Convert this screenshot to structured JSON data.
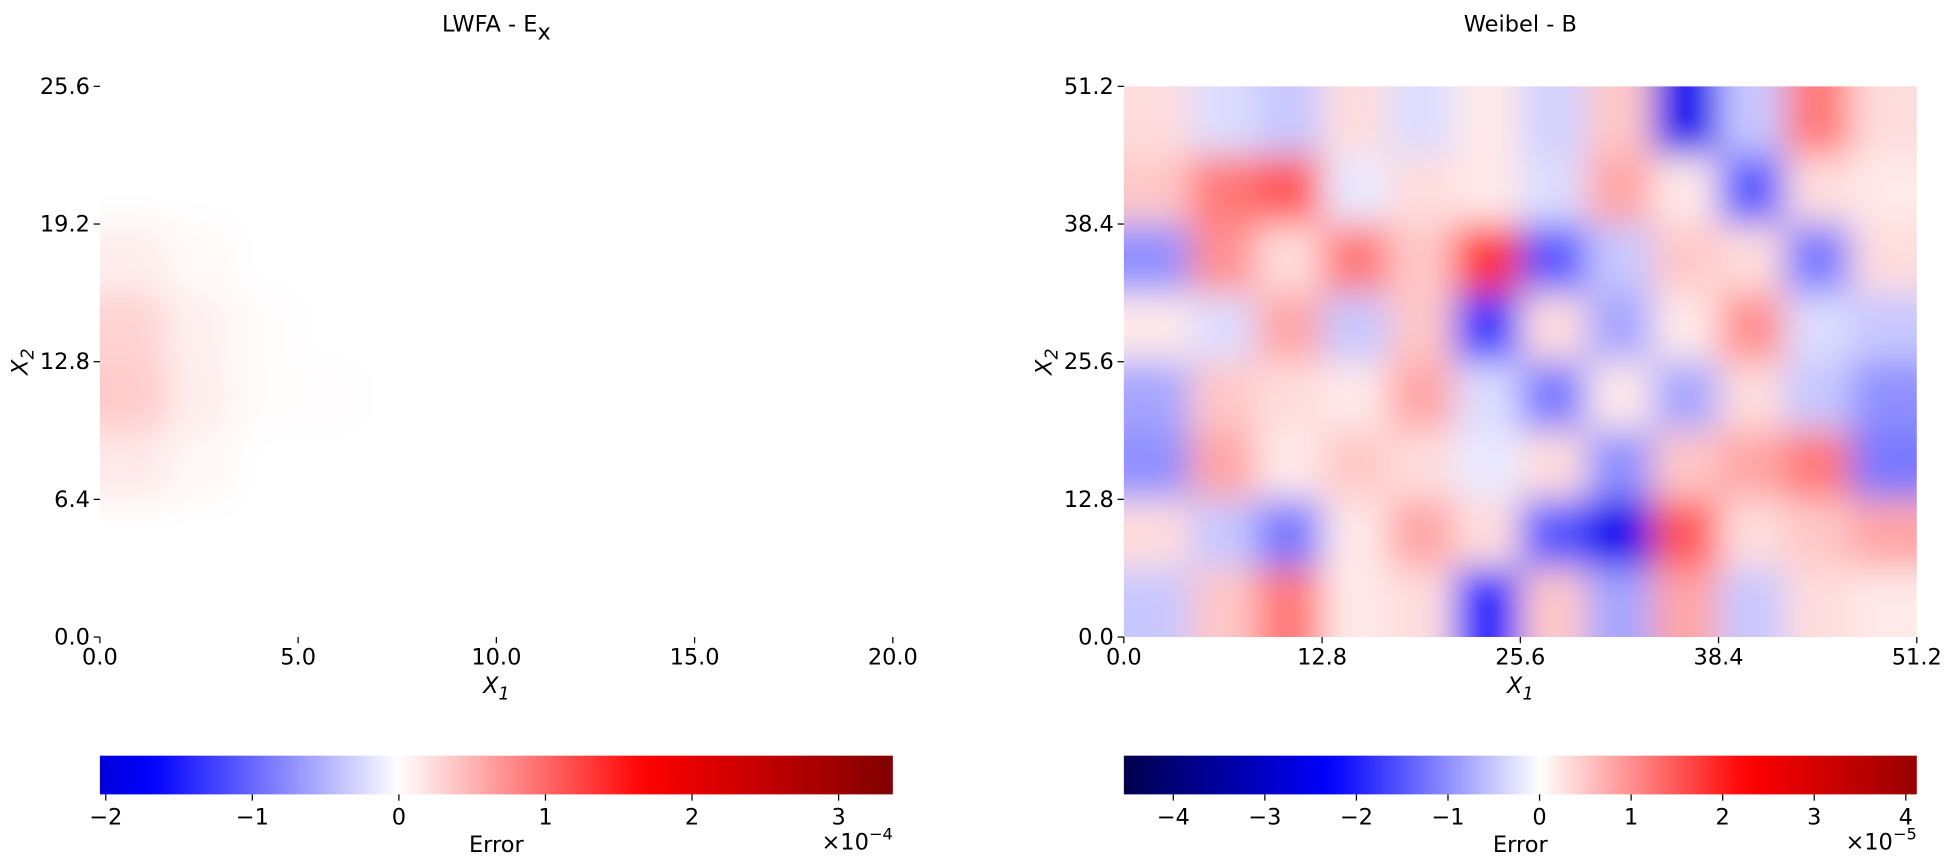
{
  "chart_data": [
    {
      "type": "heatmap",
      "title": "LWFA - E",
      "title_sub": "x",
      "xlabel": "X",
      "xlabel_sub": "1",
      "ylabel": "X",
      "ylabel_sub": "2",
      "xlim": [
        0,
        20
      ],
      "ylim": [
        0,
        25.6
      ],
      "xticks": [
        {
          "value": 0,
          "label": "0.0"
        },
        {
          "value": 5,
          "label": "5.0"
        },
        {
          "value": 10,
          "label": "10.0"
        },
        {
          "value": 15,
          "label": "15.0"
        },
        {
          "value": 20,
          "label": "20.0"
        }
      ],
      "yticks": [
        {
          "value": 0,
          "label": "0.0"
        },
        6.4,
        12.8,
        19.2,
        25.6
      ],
      "colormap": "seismic",
      "clim": [
        -2.04,
        3.37
      ],
      "z": [
        [
          0,
          0,
          0,
          0,
          0,
          0,
          0,
          0,
          0,
          0,
          0,
          0
        ],
        [
          0,
          0,
          0,
          0,
          0,
          0,
          0,
          0,
          0,
          0,
          0,
          0
        ],
        [
          0.12,
          0.04,
          0,
          0,
          0,
          0,
          0,
          0,
          0,
          0,
          0,
          0
        ],
        [
          0.3,
          0.1,
          0.02,
          0,
          0,
          0,
          0,
          0,
          0,
          0,
          0,
          0
        ],
        [
          0.35,
          0.12,
          0.02,
          0.01,
          0,
          0,
          0,
          0,
          0,
          0,
          0,
          0
        ],
        [
          0.15,
          0.05,
          0,
          0,
          0,
          0,
          0,
          0,
          0,
          0,
          0,
          0
        ],
        [
          0,
          0,
          0,
          0,
          0,
          0,
          0,
          0,
          0,
          0,
          0,
          0
        ],
        [
          0,
          0,
          0,
          0,
          0,
          0,
          0,
          0,
          0,
          0,
          0,
          0
        ]
      ],
      "colorbar": {
        "label": "Error",
        "offset": "×10",
        "offset_exp": "−4",
        "ticks": [
          {
            "value": -2,
            "label": "−2"
          },
          {
            "value": -1,
            "label": "−1"
          },
          0,
          1,
          2,
          3
        ]
      }
    },
    {
      "type": "heatmap",
      "title": "Weibel - B",
      "xlabel": "X",
      "xlabel_sub": "1",
      "ylabel": "X",
      "ylabel_sub": "2",
      "xlim": [
        0,
        51.2
      ],
      "ylim": [
        0,
        51.2
      ],
      "xticks": [
        {
          "value": 0,
          "label": "0.0"
        },
        12.8,
        25.6,
        38.4,
        51.2
      ],
      "yticks": [
        {
          "value": 0,
          "label": "0.0"
        },
        12.8,
        25.6,
        38.4,
        51.2
      ],
      "colormap": "seismic",
      "clim": [
        -4.54,
        4.12
      ],
      "z": [
        [
          0.3,
          -0.3,
          -0.5,
          0.3,
          -0.3,
          0.2,
          -0.4,
          0.5,
          -2.5,
          -0.5,
          1.2,
          0.3
        ],
        [
          0.5,
          1.2,
          1.5,
          -0.2,
          0.3,
          0.2,
          -0.3,
          0.8,
          0.2,
          -1.5,
          0.3,
          0.2
        ],
        [
          -1,
          1,
          0.3,
          1.2,
          0.5,
          1.8,
          -1.5,
          -0.5,
          0.5,
          0.3,
          -1.2,
          0.3
        ],
        [
          0.2,
          -0.3,
          0.8,
          -0.5,
          0.5,
          -1.8,
          0.3,
          -0.8,
          0.2,
          1,
          -0.3,
          -0.5
        ],
        [
          -0.8,
          0.5,
          0.3,
          0.2,
          0.8,
          -0.3,
          -1.2,
          0.2,
          -0.8,
          0.3,
          -0.5,
          -1
        ],
        [
          -1,
          0.8,
          0.2,
          0.5,
          0.3,
          -0.2,
          0.3,
          -1,
          0.5,
          0.8,
          1.2,
          -1.2
        ],
        [
          0.3,
          -0.5,
          -1.2,
          0.2,
          0.8,
          0.3,
          -1.5,
          -2.5,
          1.5,
          0.3,
          0.5,
          0.8
        ],
        [
          -0.5,
          0.5,
          1.2,
          0.2,
          0.3,
          -2,
          0.5,
          -0.8,
          0.8,
          -0.5,
          0.3,
          0.2
        ]
      ],
      "colorbar": {
        "label": "Error",
        "offset": "×10",
        "offset_exp": "−5",
        "ticks": [
          {
            "value": -4,
            "label": "−4"
          },
          {
            "value": -3,
            "label": "−3"
          },
          {
            "value": -2,
            "label": "−2"
          },
          {
            "value": -1,
            "label": "−1"
          },
          0,
          1,
          2,
          3,
          4
        ]
      }
    }
  ]
}
